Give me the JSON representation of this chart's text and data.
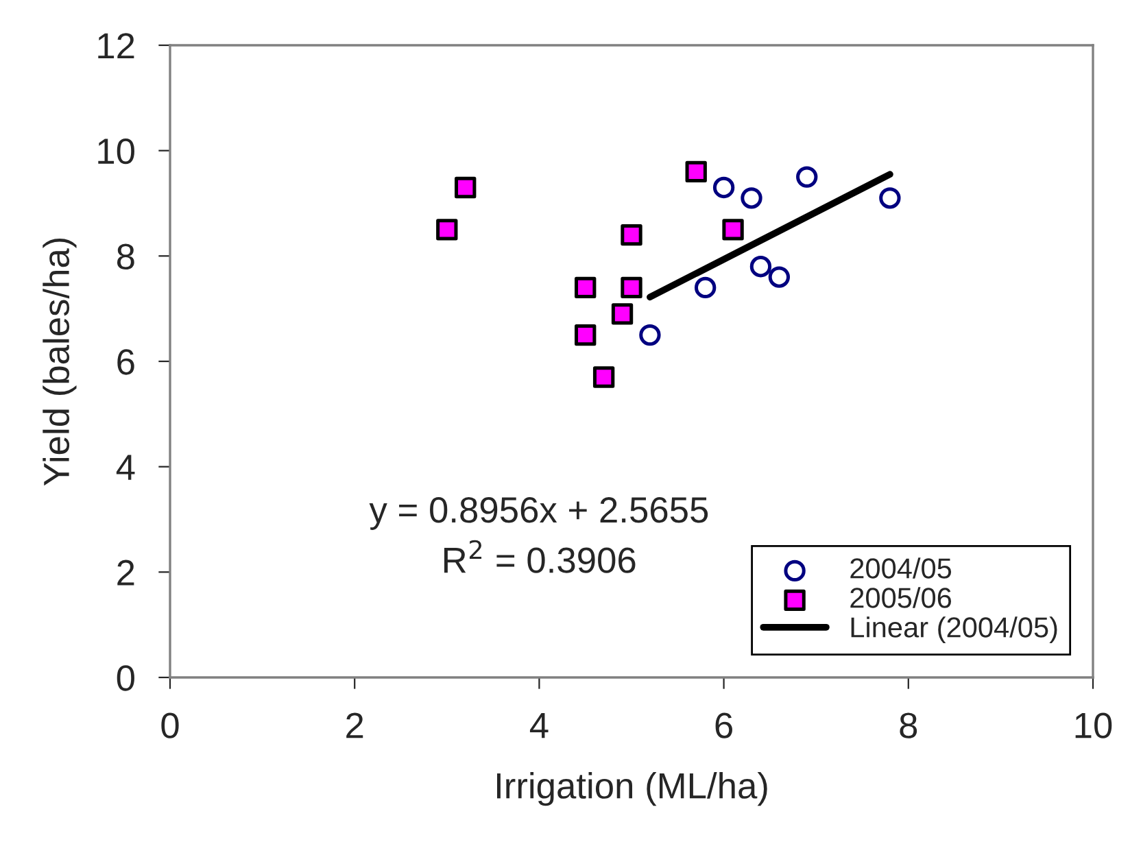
{
  "chart_data": {
    "type": "scatter",
    "xlabel": "Irrigation (ML/ha)",
    "ylabel": "Yield (bales/ha)",
    "xlim": [
      0,
      10
    ],
    "xticks": [
      0,
      2,
      4,
      6,
      8,
      10
    ],
    "ylim": [
      0,
      12
    ],
    "yticks": [
      0,
      2,
      4,
      6,
      8,
      10,
      12
    ],
    "grid": false,
    "legend": "bottom right",
    "annotations": [
      "y = 0.8956x + 2.5655",
      "R$^{2}$ = 0.3906"
    ],
    "series": [
      {
        "name": "2004/05",
        "marker": "circle",
        "color": "#000080",
        "x": [
          5.2,
          5.8,
          6.0,
          6.3,
          6.4,
          6.6,
          6.9,
          7.8
        ],
        "values": [
          6.5,
          7.4,
          9.3,
          9.1,
          7.8,
          7.6,
          9.5,
          9.1
        ]
      },
      {
        "name": "2005/06",
        "marker": "square",
        "color": "#ff00ff",
        "x": [
          3.0,
          3.2,
          4.5,
          4.5,
          4.7,
          4.9,
          5.0,
          5.0,
          5.7,
          6.1
        ],
        "values": [
          8.5,
          9.3,
          7.4,
          6.5,
          5.7,
          6.9,
          8.4,
          7.4,
          9.6,
          8.5
        ]
      },
      {
        "name": "Linear (2004/05)",
        "type": "line",
        "color": "#000000",
        "x": [
          5.2,
          7.8
        ],
        "values": [
          7.22,
          9.55
        ]
      }
    ]
  }
}
